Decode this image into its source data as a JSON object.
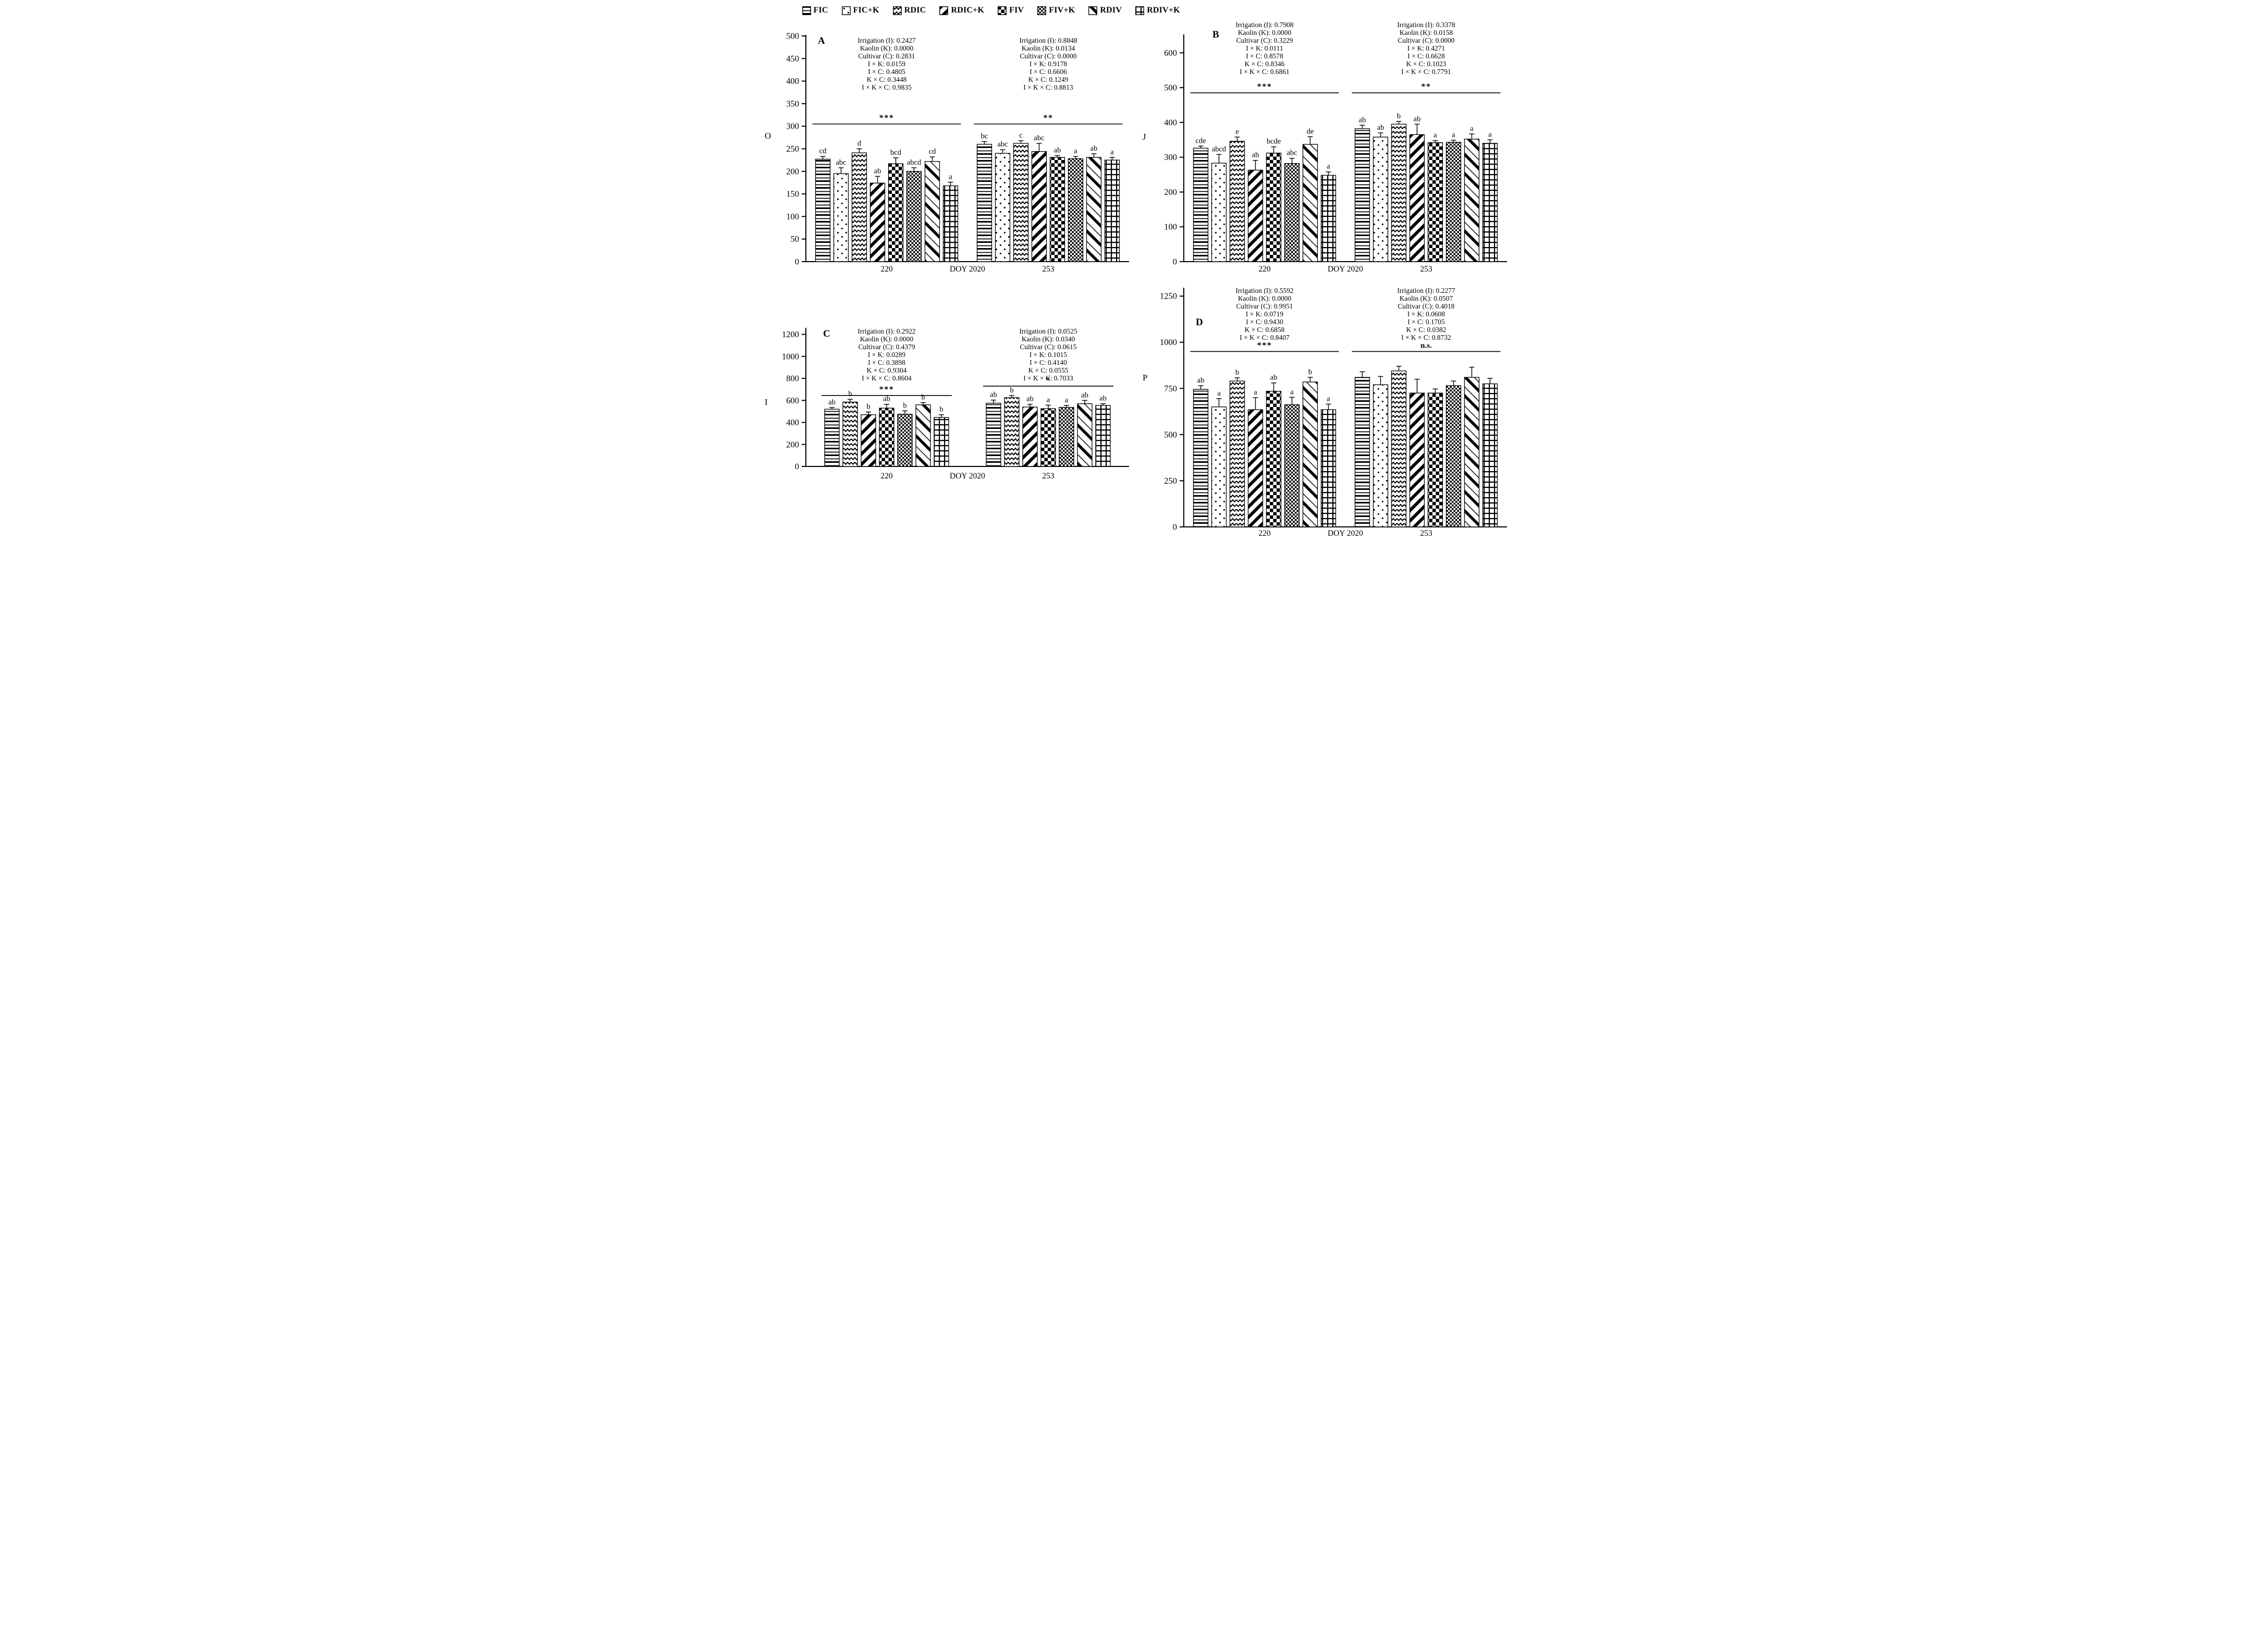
{
  "figure": {
    "doy_label": "DOY 2020",
    "legend": [
      {
        "label": "FIC",
        "pattern": "hstripe"
      },
      {
        "label": "FIC+K",
        "pattern": "dots"
      },
      {
        "label": "RDIC",
        "pattern": "chevron"
      },
      {
        "label": "RDIC+K",
        "pattern": "diagdown"
      },
      {
        "label": "FIV",
        "pattern": "bigcheck"
      },
      {
        "label": "FIV+K",
        "pattern": "finecheck"
      },
      {
        "label": "RDIV",
        "pattern": "diagup"
      },
      {
        "label": "RDIV+K",
        "pattern": "grid"
      }
    ]
  },
  "chart_data": [
    {
      "type": "bar",
      "panel_label": "A",
      "ylabel": "O",
      "ylim": [
        0,
        500
      ],
      "yticks": [
        0,
        50,
        100,
        150,
        200,
        250,
        300,
        350,
        400,
        450,
        500
      ],
      "sig_line_y": [
        305,
        305
      ],
      "groups": [
        {
          "x_label": "220",
          "significance": "***",
          "stats": [
            "Irrigation (I): 0.2427",
            "Kaolin (K): 0.0000",
            "Cultivar (C): 0.2831",
            "I × K: 0.0159",
            "I × C: 0.4805",
            "K × C: 0.3448",
            "I × K × C: 0.9835"
          ],
          "bars": [
            {
              "series": "FIC",
              "value": 227,
              "error": 6,
              "letter": "cd"
            },
            {
              "series": "FIC+K",
              "value": 195,
              "error": 13,
              "letter": "abc"
            },
            {
              "series": "RDIC",
              "value": 241,
              "error": 9,
              "letter": "d"
            },
            {
              "series": "RDIC+K",
              "value": 174,
              "error": 15,
              "letter": "ab"
            },
            {
              "series": "FIV",
              "value": 217,
              "error": 13,
              "letter": "bcd"
            },
            {
              "series": "FIV+K",
              "value": 200,
              "error": 8,
              "letter": "abcd"
            },
            {
              "series": "RDIV",
              "value": 222,
              "error": 10,
              "letter": "cd"
            },
            {
              "series": "RDIV+K",
              "value": 168,
              "error": 8,
              "letter": "a"
            }
          ]
        },
        {
          "x_label": "253",
          "significance": "**",
          "stats": [
            "Irrigation (I): 0.8848",
            "Kaolin (K): 0.0134",
            "Cultivar (C): 0.0000",
            "I × K: 0.9178",
            "I × C: 0.6606",
            "K × C: 0.1249",
            "I × K × C: 0.8813"
          ],
          "bars": [
            {
              "series": "FIC",
              "value": 260,
              "error": 6,
              "letter": "bc"
            },
            {
              "series": "FIC+K",
              "value": 240,
              "error": 8,
              "letter": "abc"
            },
            {
              "series": "RDIC",
              "value": 262,
              "error": 6,
              "letter": "c"
            },
            {
              "series": "RDIC+K",
              "value": 244,
              "error": 18,
              "letter": "abc"
            },
            {
              "series": "FIV",
              "value": 231,
              "error": 4,
              "letter": "ab"
            },
            {
              "series": "FIV+K",
              "value": 228,
              "error": 5,
              "letter": "a"
            },
            {
              "series": "RDIV",
              "value": 231,
              "error": 8,
              "letter": "ab"
            },
            {
              "series": "RDIV+K",
              "value": 225,
              "error": 6,
              "letter": "a"
            }
          ]
        }
      ]
    },
    {
      "type": "bar",
      "panel_label": "B",
      "ylabel": "J",
      "ylim": [
        0,
        650
      ],
      "yticks": [
        0,
        100,
        200,
        300,
        400,
        500,
        600
      ],
      "sig_line_y": [
        485,
        485
      ],
      "groups": [
        {
          "x_label": "220",
          "significance": "***",
          "stats": [
            "Irrigation (I): 0.7908",
            "Kaolin (K): 0.0000",
            "Cultivar (C): 0.3229",
            "I × K: 0.0111",
            "I × C: 0.8578",
            "K × C: 0.8346",
            "I × K × C: 0.6861"
          ],
          "bars": [
            {
              "series": "FIC",
              "value": 326,
              "error": 6,
              "letter": "cde"
            },
            {
              "series": "FIC+K",
              "value": 283,
              "error": 25,
              "letter": "abcd"
            },
            {
              "series": "RDIC",
              "value": 346,
              "error": 12,
              "letter": "e"
            },
            {
              "series": "RDIC+K",
              "value": 263,
              "error": 28,
              "letter": "ab"
            },
            {
              "series": "FIV",
              "value": 312,
              "error": 18,
              "letter": "bcde"
            },
            {
              "series": "FIV+K",
              "value": 282,
              "error": 15,
              "letter": "abc"
            },
            {
              "series": "RDIV",
              "value": 337,
              "error": 22,
              "letter": "de"
            },
            {
              "series": "RDIV+K",
              "value": 248,
              "error": 10,
              "letter": "a"
            }
          ]
        },
        {
          "x_label": "253",
          "significance": "**",
          "stats": [
            "Irrigation (I): 0.3378",
            "Kaolin (K): 0.0158",
            "Cultivar (C): 0.0000",
            "I × K: 0.4271",
            "I × C: 0.6628",
            "K × C: 0.1023",
            "I × K × C: 0.7791"
          ],
          "bars": [
            {
              "series": "FIC",
              "value": 382,
              "error": 10,
              "letter": "ab"
            },
            {
              "series": "FIC+K",
              "value": 358,
              "error": 12,
              "letter": "ab"
            },
            {
              "series": "RDIC",
              "value": 395,
              "error": 8,
              "letter": "b"
            },
            {
              "series": "RDIC+K",
              "value": 365,
              "error": 30,
              "letter": "ab"
            },
            {
              "series": "FIV",
              "value": 342,
              "error": 6,
              "letter": "a"
            },
            {
              "series": "FIV+K",
              "value": 343,
              "error": 6,
              "letter": "a"
            },
            {
              "series": "RDIV",
              "value": 352,
              "error": 15,
              "letter": "a"
            },
            {
              "series": "RDIV+K",
              "value": 340,
              "error": 10,
              "letter": "a"
            }
          ]
        }
      ]
    },
    {
      "type": "bar",
      "panel_label": "C",
      "ylabel": "I",
      "ylim": [
        0,
        1250
      ],
      "yticks": [
        0,
        200,
        400,
        600,
        800,
        1000,
        1200
      ],
      "sig_line_y": [
        645,
        730
      ],
      "groups": [
        {
          "x_label": "220",
          "significance": "***",
          "stats": [
            "Irrigation (I): 0.2922",
            "Kaolin (K): 0.0000",
            "Cultivar (C): 0.4379",
            "I × K: 0.0289",
            "I × C: 0.3898",
            "K × C: 0.9304",
            "I × K × C: 0.8604"
          ],
          "bars": [
            {
              "series": "FIC",
              "value": 520,
              "error": 15,
              "letter": "ab"
            },
            {
              "series": "RDIC",
              "value": 585,
              "error": 25,
              "letter": "b"
            },
            {
              "series": "RDIC+K",
              "value": 470,
              "error": 25,
              "letter": "b"
            },
            {
              "series": "FIV",
              "value": 530,
              "error": 35,
              "letter": "ab"
            },
            {
              "series": "FIV+K",
              "value": 475,
              "error": 30,
              "letter": "b"
            },
            {
              "series": "RDIV",
              "value": 560,
              "error": 20,
              "letter": "b"
            },
            {
              "series": "RDIV+K",
              "value": 445,
              "error": 25,
              "letter": "b"
            }
          ]
        },
        {
          "x_label": "253",
          "significance": "*",
          "stats": [
            "Irrigation (I): 0.0525",
            "Kaolin (K): 0.0340",
            "Cultivar (C): 0.0615",
            "I × K: 0.1015",
            "I × C: 0.4140",
            "K × C: 0.0555",
            "I × K × C: 0.7033"
          ],
          "bars": [
            {
              "series": "FIC",
              "value": 575,
              "error": 28,
              "letter": "ab"
            },
            {
              "series": "RDIC",
              "value": 625,
              "error": 20,
              "letter": "b"
            },
            {
              "series": "RDIC+K",
              "value": 540,
              "error": 25,
              "letter": "ab"
            },
            {
              "series": "FIV",
              "value": 525,
              "error": 32,
              "letter": "a"
            },
            {
              "series": "FIV+K",
              "value": 537,
              "error": 18,
              "letter": "a"
            },
            {
              "series": "RDIV",
              "value": 570,
              "error": 30,
              "letter": "ab"
            },
            {
              "series": "RDIV+K",
              "value": 555,
              "error": 15,
              "letter": "ab"
            }
          ]
        }
      ]
    },
    {
      "type": "bar",
      "panel_label": "D",
      "ylabel": "P",
      "ylim": [
        0,
        1290
      ],
      "yticks": [
        0,
        250,
        500,
        750,
        1000,
        1250
      ],
      "sig_line_y": [
        950,
        950
      ],
      "groups": [
        {
          "x_label": "220",
          "significance": "***",
          "stats": [
            "Irrigation (I): 0.5592",
            "Kaolin (K): 0.0000",
            "Cultivar (C): 0.9951",
            "I × K: 0.0719",
            "I × C: 0.9430",
            "K × C: 0.6858",
            "I × K × C: 0.8407"
          ],
          "bars": [
            {
              "series": "FIC",
              "value": 745,
              "error": 20,
              "letter": "ab"
            },
            {
              "series": "FIC+K",
              "value": 650,
              "error": 45,
              "letter": "a"
            },
            {
              "series": "RDIC",
              "value": 790,
              "error": 18,
              "letter": "b"
            },
            {
              "series": "RDIC+K",
              "value": 635,
              "error": 65,
              "letter": "a"
            },
            {
              "series": "FIV",
              "value": 735,
              "error": 45,
              "letter": "ab"
            },
            {
              "series": "FIV+K",
              "value": 662,
              "error": 40,
              "letter": "a"
            },
            {
              "series": "RDIV",
              "value": 785,
              "error": 25,
              "letter": "b"
            },
            {
              "series": "RDIV+K",
              "value": 635,
              "error": 30,
              "letter": "a"
            }
          ]
        },
        {
          "x_label": "253",
          "significance": "n.s.",
          "stats": [
            "Irrigation (I): 0.2277",
            "Kaolin (K): 0.0507",
            "Cultivar (C): 0.4018",
            "I × K: 0.0608",
            "I × C: 0.1705",
            "K × C: 0.0382",
            "I × K × C: 0.8732"
          ],
          "bars": [
            {
              "series": "FIC",
              "value": 810,
              "error": 30,
              "letter": ""
            },
            {
              "series": "FIC+K",
              "value": 770,
              "error": 45,
              "letter": ""
            },
            {
              "series": "RDIC",
              "value": 845,
              "error": 25,
              "letter": ""
            },
            {
              "series": "RDIC+K",
              "value": 725,
              "error": 75,
              "letter": ""
            },
            {
              "series": "FIV",
              "value": 725,
              "error": 22,
              "letter": ""
            },
            {
              "series": "FIV+K",
              "value": 765,
              "error": 25,
              "letter": ""
            },
            {
              "series": "RDIV",
              "value": 810,
              "error": 55,
              "letter": ""
            },
            {
              "series": "RDIV+K",
              "value": 775,
              "error": 30,
              "letter": ""
            }
          ]
        }
      ]
    }
  ]
}
